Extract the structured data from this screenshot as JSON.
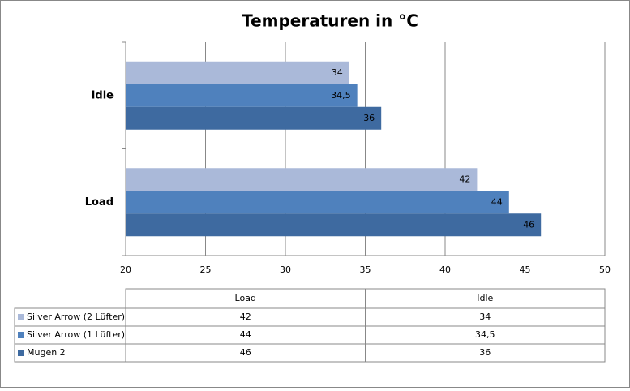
{
  "chart_data": {
    "type": "bar",
    "orientation": "horizontal",
    "title": "Temperaturen in °C",
    "categories": [
      "Load",
      "Idle"
    ],
    "series": [
      {
        "name": "Silver Arrow (2 Lüfter)",
        "color": "#aab9d9",
        "values": [
          42,
          34
        ]
      },
      {
        "name": "Silver Arrow (1 Lüfter)",
        "color": "#4f81bd",
        "values": [
          44,
          34.5
        ],
        "value_labels": [
          "44",
          "34,5"
        ]
      },
      {
        "name": "Mugen 2",
        "color": "#3e6aa0",
        "values": [
          46,
          36
        ]
      }
    ],
    "xlim": [
      20,
      50
    ],
    "xticks": [
      20,
      25,
      30,
      35,
      40,
      45,
      50
    ],
    "grid": true,
    "data_table": true
  }
}
